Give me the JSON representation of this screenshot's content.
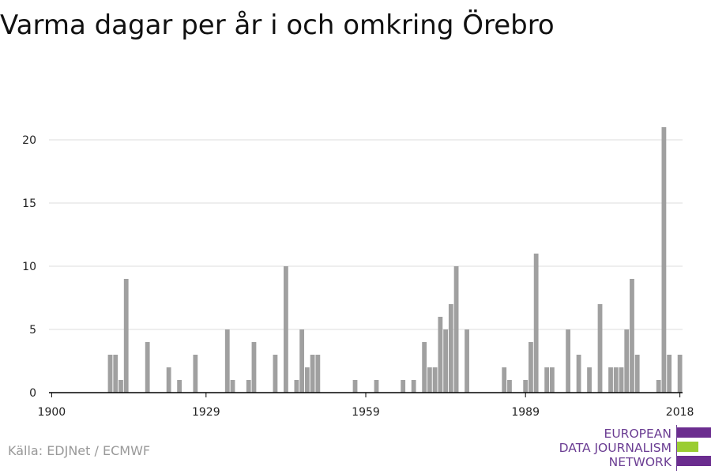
{
  "title": "Varma dagar per år i och omkring Örebro",
  "source": "Källa: EDJNet / ECMWF",
  "logo": {
    "lines": [
      "EUROPEAN",
      "DATA JOURNALISM",
      "NETWORK"
    ],
    "colors": {
      "purple": "#6b2d8f",
      "green": "#9acd32"
    }
  },
  "colors": {
    "bar": "#a0a0a0",
    "grid": "#dddddd",
    "axis": "#000000",
    "tick_text": "#222222"
  },
  "chart_data": {
    "type": "bar",
    "title": "Varma dagar per år i och omkring Örebro",
    "xlabel": "",
    "ylabel": "",
    "xlim": [
      1899.5,
      2018.5
    ],
    "ylim": [
      0,
      22
    ],
    "xticks": [
      1900,
      1929,
      1959,
      1989,
      2018
    ],
    "yticks": [
      0,
      5,
      10,
      15,
      20
    ],
    "grid": true,
    "x": [
      1911,
      1912,
      1913,
      1914,
      1918,
      1922,
      1924,
      1927,
      1933,
      1934,
      1937,
      1938,
      1942,
      1944,
      1946,
      1947,
      1948,
      1949,
      1950,
      1957,
      1961,
      1966,
      1968,
      1970,
      1971,
      1972,
      1973,
      1974,
      1975,
      1976,
      1978,
      1985,
      1986,
      1989,
      1990,
      1991,
      1993,
      1994,
      1997,
      1999,
      2001,
      2003,
      2005,
      2006,
      2007,
      2008,
      2009,
      2010,
      2014,
      2015,
      2016,
      2018
    ],
    "values": [
      3,
      3,
      1,
      9,
      4,
      2,
      1,
      3,
      5,
      1,
      1,
      4,
      3,
      10,
      1,
      5,
      2,
      3,
      3,
      1,
      1,
      1,
      1,
      4,
      2,
      2,
      6,
      5,
      7,
      10,
      5,
      2,
      1,
      1,
      4,
      11,
      2,
      2,
      5,
      3,
      2,
      7,
      2,
      2,
      2,
      5,
      9,
      3,
      1,
      21,
      3,
      3
    ]
  }
}
